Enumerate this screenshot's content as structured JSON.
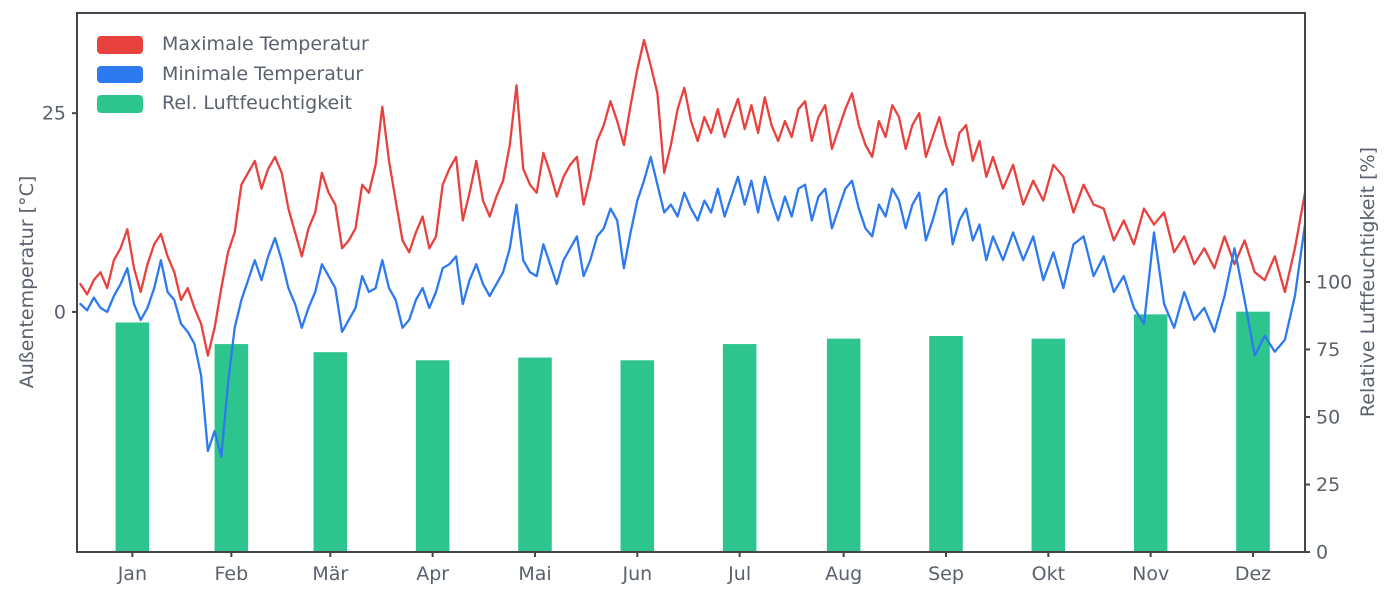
{
  "chart_data": {
    "type": "mixed",
    "months": [
      "Jan",
      "Feb",
      "Mär",
      "Apr",
      "Mai",
      "Jun",
      "Jul",
      "Aug",
      "Sep",
      "Okt",
      "Nov",
      "Dez"
    ],
    "month_lengths": [
      31,
      28,
      31,
      30,
      31,
      30,
      31,
      31,
      30,
      31,
      30,
      31
    ],
    "left_axis": {
      "label": "Außentemperatur [°C]",
      "ticks": [
        0,
        25
      ],
      "range": [
        -30.2,
        37.6
      ]
    },
    "right_axis": {
      "label": "Relative Luftfeuchtigkeit [%]",
      "ticks": [
        0,
        25,
        50,
        75,
        100
      ],
      "range": [
        0,
        199.6
      ]
    },
    "days": [
      0,
      2,
      4,
      6,
      8,
      10,
      12,
      14,
      16,
      18,
      20,
      22,
      24,
      26,
      28,
      30,
      32,
      34,
      36,
      38,
      40,
      42,
      44,
      46,
      48,
      50,
      52,
      54,
      56,
      58,
      60,
      62,
      64,
      66,
      68,
      70,
      72,
      74,
      76,
      78,
      80,
      82,
      84,
      86,
      88,
      90,
      92,
      94,
      96,
      98,
      100,
      102,
      104,
      106,
      108,
      110,
      112,
      114,
      116,
      118,
      120,
      122,
      124,
      126,
      128,
      130,
      132,
      134,
      136,
      138,
      140,
      142,
      144,
      146,
      148,
      150,
      152,
      154,
      156,
      158,
      160,
      162,
      164,
      166,
      168,
      170,
      172,
      174,
      176,
      178,
      180,
      182,
      184,
      186,
      188,
      190,
      192,
      194,
      196,
      198,
      200,
      202,
      204,
      206,
      208,
      210,
      212,
      214,
      216,
      218,
      220,
      222,
      224,
      226,
      228,
      230,
      232,
      234,
      236,
      238,
      240,
      242,
      244,
      246,
      248,
      250,
      252,
      254,
      256,
      258,
      260,
      262,
      264,
      266,
      268,
      270,
      272,
      275,
      278,
      281,
      284,
      287,
      290,
      293,
      296,
      299,
      302,
      305,
      308,
      311,
      314,
      317,
      320,
      323,
      326,
      329,
      332,
      335,
      338,
      341,
      344,
      347,
      350,
      353,
      356,
      359,
      362,
      365
    ],
    "series": [
      {
        "name": "Maximale Temperatur",
        "type": "line",
        "axis": "left",
        "color": "#e8423e",
        "values": [
          3.5,
          2.2,
          4.0,
          5.0,
          3.0,
          6.5,
          8.0,
          10.4,
          5.5,
          2.5,
          6.0,
          8.5,
          9.8,
          7.0,
          5.0,
          1.5,
          3.0,
          0.5,
          -1.5,
          -5.5,
          -2.0,
          3.0,
          7.5,
          10.0,
          16.0,
          17.5,
          19.0,
          15.5,
          18.0,
          19.5,
          17.5,
          13.0,
          10.0,
          7.0,
          10.5,
          12.5,
          17.5,
          15.0,
          13.5,
          8.0,
          9.0,
          10.5,
          16.0,
          15.0,
          18.5,
          25.8,
          19.0,
          14.0,
          9.0,
          7.5,
          10.0,
          12.0,
          8.0,
          9.5,
          16.0,
          18.0,
          19.5,
          11.5,
          15.0,
          19.0,
          14.0,
          12.0,
          14.5,
          16.5,
          21.0,
          28.5,
          18.0,
          16.0,
          15.0,
          20.0,
          17.5,
          14.5,
          17.0,
          18.5,
          19.5,
          13.5,
          17.0,
          21.5,
          23.5,
          26.5,
          24.0,
          21.0,
          26.0,
          30.5,
          34.2,
          31.0,
          27.5,
          17.5,
          21.0,
          25.5,
          28.2,
          24.0,
          21.5,
          24.5,
          22.5,
          25.5,
          22.0,
          24.5,
          26.8,
          23.0,
          26.0,
          22.5,
          27.0,
          23.5,
          21.5,
          24.0,
          22.0,
          25.5,
          26.5,
          21.5,
          24.5,
          26.0,
          20.5,
          23.0,
          25.5,
          27.5,
          23.5,
          21.0,
          19.5,
          24.0,
          22.0,
          26.0,
          24.5,
          20.5,
          23.5,
          25.0,
          19.5,
          22.0,
          24.5,
          21.0,
          18.5,
          22.5,
          23.5,
          19.0,
          21.5,
          17.0,
          19.5,
          15.5,
          18.5,
          13.5,
          16.5,
          14.0,
          18.5,
          17.0,
          12.5,
          16.0,
          13.5,
          13.0,
          9.0,
          11.5,
          8.5,
          13.0,
          11.0,
          12.5,
          7.5,
          9.5,
          6.0,
          8.0,
          5.5,
          9.5,
          6.0,
          9.0,
          5.0,
          4.0,
          7.0,
          2.5,
          8.0,
          15.0
        ]
      },
      {
        "name": "Minimale Temperatur",
        "type": "line",
        "axis": "left",
        "color": "#2d7af0",
        "values": [
          1.0,
          0.2,
          1.8,
          0.5,
          0.0,
          2.0,
          3.5,
          5.5,
          1.0,
          -1.0,
          0.5,
          3.0,
          6.5,
          2.5,
          1.5,
          -1.5,
          -2.5,
          -4.0,
          -8.0,
          -17.5,
          -15.0,
          -18.2,
          -9.0,
          -2.0,
          1.5,
          4.0,
          6.5,
          4.0,
          7.0,
          9.3,
          6.5,
          3.0,
          1.0,
          -2.0,
          0.5,
          2.5,
          6.0,
          4.5,
          3.0,
          -2.5,
          -1.0,
          0.5,
          4.5,
          2.5,
          3.0,
          6.5,
          3.0,
          1.5,
          -2.0,
          -1.0,
          1.5,
          3.0,
          0.5,
          2.5,
          5.5,
          6.0,
          7.0,
          1.0,
          4.0,
          6.0,
          3.5,
          2.0,
          3.5,
          5.0,
          8.0,
          13.5,
          6.5,
          5.0,
          4.5,
          8.5,
          6.0,
          3.5,
          6.5,
          8.0,
          9.5,
          4.5,
          6.5,
          9.5,
          10.5,
          13.0,
          11.5,
          5.5,
          10.0,
          14.0,
          16.5,
          19.5,
          16.0,
          12.5,
          13.5,
          12.0,
          15.0,
          13.0,
          11.5,
          14.0,
          12.5,
          15.5,
          12.0,
          14.5,
          17.0,
          13.5,
          16.5,
          12.5,
          17.0,
          14.0,
          11.5,
          14.5,
          12.0,
          15.5,
          16.0,
          11.5,
          14.5,
          15.5,
          10.5,
          13.0,
          15.5,
          16.5,
          13.0,
          10.5,
          9.5,
          13.5,
          12.0,
          15.5,
          14.0,
          10.5,
          13.5,
          15.0,
          9.0,
          11.5,
          14.5,
          15.5,
          8.5,
          11.5,
          13.0,
          9.0,
          11.0,
          6.5,
          9.5,
          6.5,
          10.0,
          6.5,
          9.5,
          4.0,
          7.5,
          3.0,
          8.5,
          9.5,
          4.5,
          7.0,
          2.5,
          4.5,
          0.5,
          -1.5,
          10.0,
          1.0,
          -2.0,
          2.5,
          -1.0,
          0.5,
          -2.5,
          2.0,
          8.0,
          1.5,
          -5.5,
          -3.0,
          -5.0,
          -3.5,
          2.0,
          11.0
        ]
      },
      {
        "name": "Rel. Luftfeuchtigkeit",
        "type": "bar",
        "axis": "right",
        "color": "#2ec48e",
        "bar_width_days": 10,
        "values": [
          85,
          77,
          74,
          71,
          72,
          71,
          77,
          79,
          80,
          79,
          88,
          89
        ]
      }
    ],
    "styles": {
      "text_color": "#5a616c",
      "spine_color": "#41464d",
      "background": "#ffffff"
    }
  }
}
